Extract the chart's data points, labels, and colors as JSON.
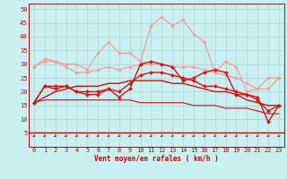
{
  "xlabel": "Vent moyen/en rafales ( km/h )",
  "background_color": "#c8f0f0",
  "grid_color": "#b0d8d8",
  "x_values": [
    0,
    1,
    2,
    3,
    4,
    5,
    6,
    7,
    8,
    9,
    10,
    11,
    12,
    13,
    14,
    15,
    16,
    17,
    18,
    19,
    20,
    21,
    22,
    23
  ],
  "series": [
    {
      "color": "#ff9999",
      "linewidth": 0.9,
      "marker": "D",
      "markersize": 1.8,
      "y": [
        29,
        32,
        31,
        30,
        30,
        28,
        34,
        38,
        34,
        34,
        31,
        44,
        47,
        44,
        46,
        41,
        38,
        27,
        31,
        29,
        20,
        21,
        25,
        25
      ]
    },
    {
      "color": "#ff9999",
      "linewidth": 0.9,
      "marker": "D",
      "markersize": 1.8,
      "y": [
        29,
        31,
        31,
        29,
        27,
        27,
        28,
        29,
        28,
        29,
        30,
        30,
        30,
        29,
        29,
        29,
        28,
        27,
        26,
        25,
        23,
        21,
        21,
        25
      ]
    },
    {
      "color": "#dd1111",
      "linewidth": 1.0,
      "marker": "D",
      "markersize": 2.0,
      "y": [
        16,
        22,
        21,
        22,
        20,
        19,
        19,
        21,
        18,
        21,
        30,
        31,
        30,
        29,
        24,
        25,
        27,
        28,
        27,
        19,
        19,
        18,
        9,
        15
      ]
    },
    {
      "color": "#dd1111",
      "linewidth": 1.0,
      "marker": "D",
      "markersize": 2.0,
      "y": [
        16,
        22,
        22,
        22,
        20,
        20,
        20,
        21,
        20,
        23,
        26,
        27,
        27,
        26,
        25,
        24,
        22,
        22,
        21,
        20,
        19,
        17,
        13,
        15
      ]
    },
    {
      "color": "#cc1111",
      "linewidth": 1.0,
      "marker": null,
      "markersize": 0,
      "y": [
        16,
        18,
        20,
        21,
        22,
        22,
        22,
        23,
        23,
        24,
        24,
        24,
        24,
        23,
        23,
        22,
        21,
        20,
        20,
        19,
        17,
        16,
        15,
        15
      ]
    },
    {
      "color": "#cc1111",
      "linewidth": 0.8,
      "marker": null,
      "markersize": 0,
      "y": [
        16,
        17,
        17,
        17,
        17,
        17,
        17,
        17,
        17,
        17,
        16,
        16,
        16,
        16,
        16,
        15,
        15,
        15,
        14,
        14,
        14,
        13,
        12,
        12
      ]
    }
  ],
  "ylim": [
    0,
    52
  ],
  "xlim": [
    -0.5,
    23.5
  ],
  "yticks": [
    5,
    10,
    15,
    20,
    25,
    30,
    35,
    40,
    45,
    50
  ],
  "xticks": [
    0,
    1,
    2,
    3,
    4,
    5,
    6,
    7,
    8,
    9,
    10,
    11,
    12,
    13,
    14,
    15,
    16,
    17,
    18,
    19,
    20,
    21,
    22,
    23
  ]
}
